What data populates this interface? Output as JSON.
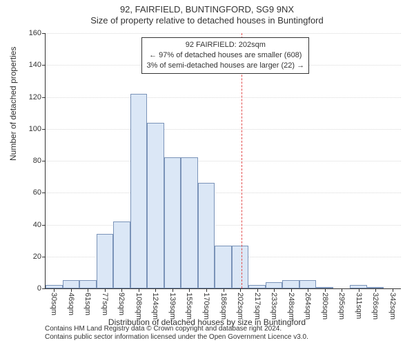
{
  "titles": {
    "super": "92, FAIRFIELD, BUNTINGFORD, SG9 9NX",
    "sub": "Size of property relative to detached houses in Buntingford",
    "y_axis": "Number of detached properties",
    "x_axis": "Distribution of detached houses by size in Buntingford"
  },
  "footnote": {
    "line1": "Contains HM Land Registry data © Crown copyright and database right 2024.",
    "line2": "Contains public sector information licensed under the Open Government Licence v3.0."
  },
  "callout": {
    "line1": "92 FAIRFIELD: 202sqm",
    "line2": "← 97% of detached houses are smaller (608)",
    "line3": "3% of semi-detached houses are larger (22) →"
  },
  "chart": {
    "type": "histogram",
    "ymax": 160,
    "ytick_step": 20,
    "bar_fill": "#dbe7f6",
    "bar_border": "#7a93b8",
    "grid_color": "#d9d9d9",
    "axis_color": "#333333",
    "ref_line_color": "#e24a4a",
    "ref_line_at_bin_index": 11.1,
    "background": "#ffffff",
    "x_labels": [
      "30sqm",
      "46sqm",
      "61sqm",
      "77sqm",
      "92sqm",
      "108sqm",
      "124sqm",
      "139sqm",
      "155sqm",
      "170sqm",
      "186sqm",
      "202sqm",
      "217sqm",
      "233sqm",
      "248sqm",
      "264sqm",
      "280sqm",
      "295sqm",
      "311sqm",
      "326sqm",
      "342sqm"
    ],
    "values": [
      2,
      5,
      5,
      34,
      42,
      122,
      104,
      82,
      82,
      66,
      27,
      27,
      2,
      4,
      5,
      5,
      1,
      0,
      2,
      1,
      0
    ]
  }
}
